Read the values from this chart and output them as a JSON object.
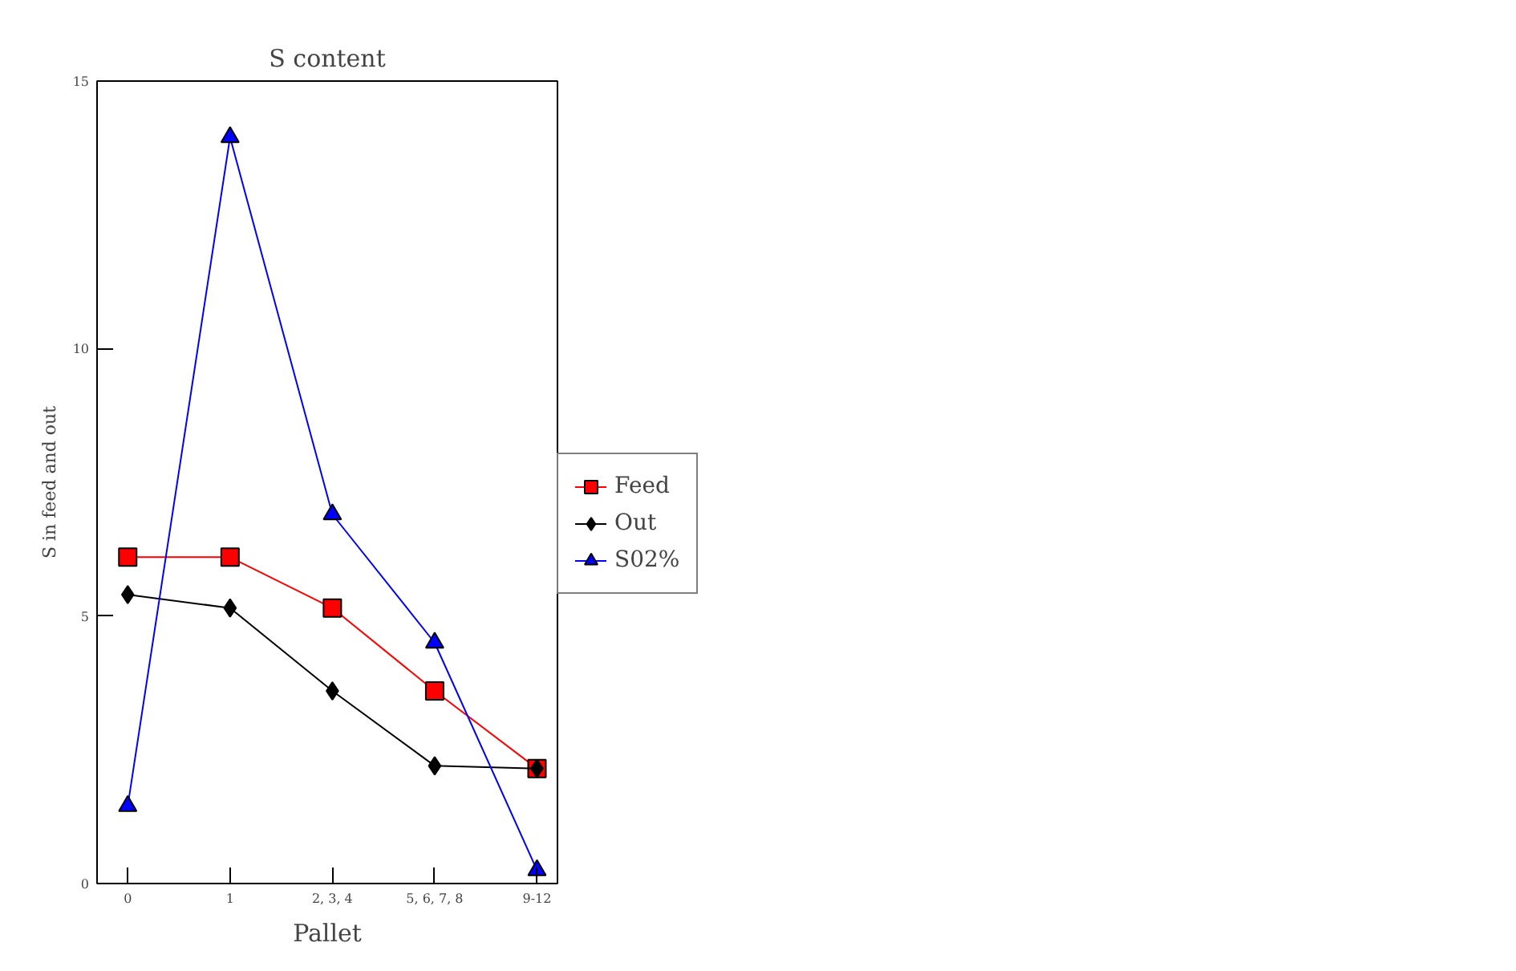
{
  "chart_data": {
    "type": "line",
    "title": "S content",
    "xlabel": "Pallet",
    "ylabel": "S in feed and out",
    "categories": [
      "0",
      "1",
      "2, 3, 4",
      "5, 6, 7, 8",
      "9-12"
    ],
    "ylim": [
      0,
      15
    ],
    "yticks": [
      0,
      5,
      10,
      15
    ],
    "grid": false,
    "legend": "right",
    "series": [
      {
        "name": "Feed",
        "color": "#ff0000",
        "marker": "square",
        "values": [
          6.1,
          6.1,
          5.15,
          3.6,
          2.15
        ]
      },
      {
        "name": "Out",
        "color": "#000000",
        "marker": "diamond",
        "values": [
          5.4,
          5.15,
          3.6,
          2.2,
          2.15
        ]
      },
      {
        "name": "S02%",
        "color": "#0000ff",
        "marker": "triangle",
        "values": [
          1.45,
          13.95,
          6.9,
          4.5,
          0.25
        ]
      }
    ]
  }
}
